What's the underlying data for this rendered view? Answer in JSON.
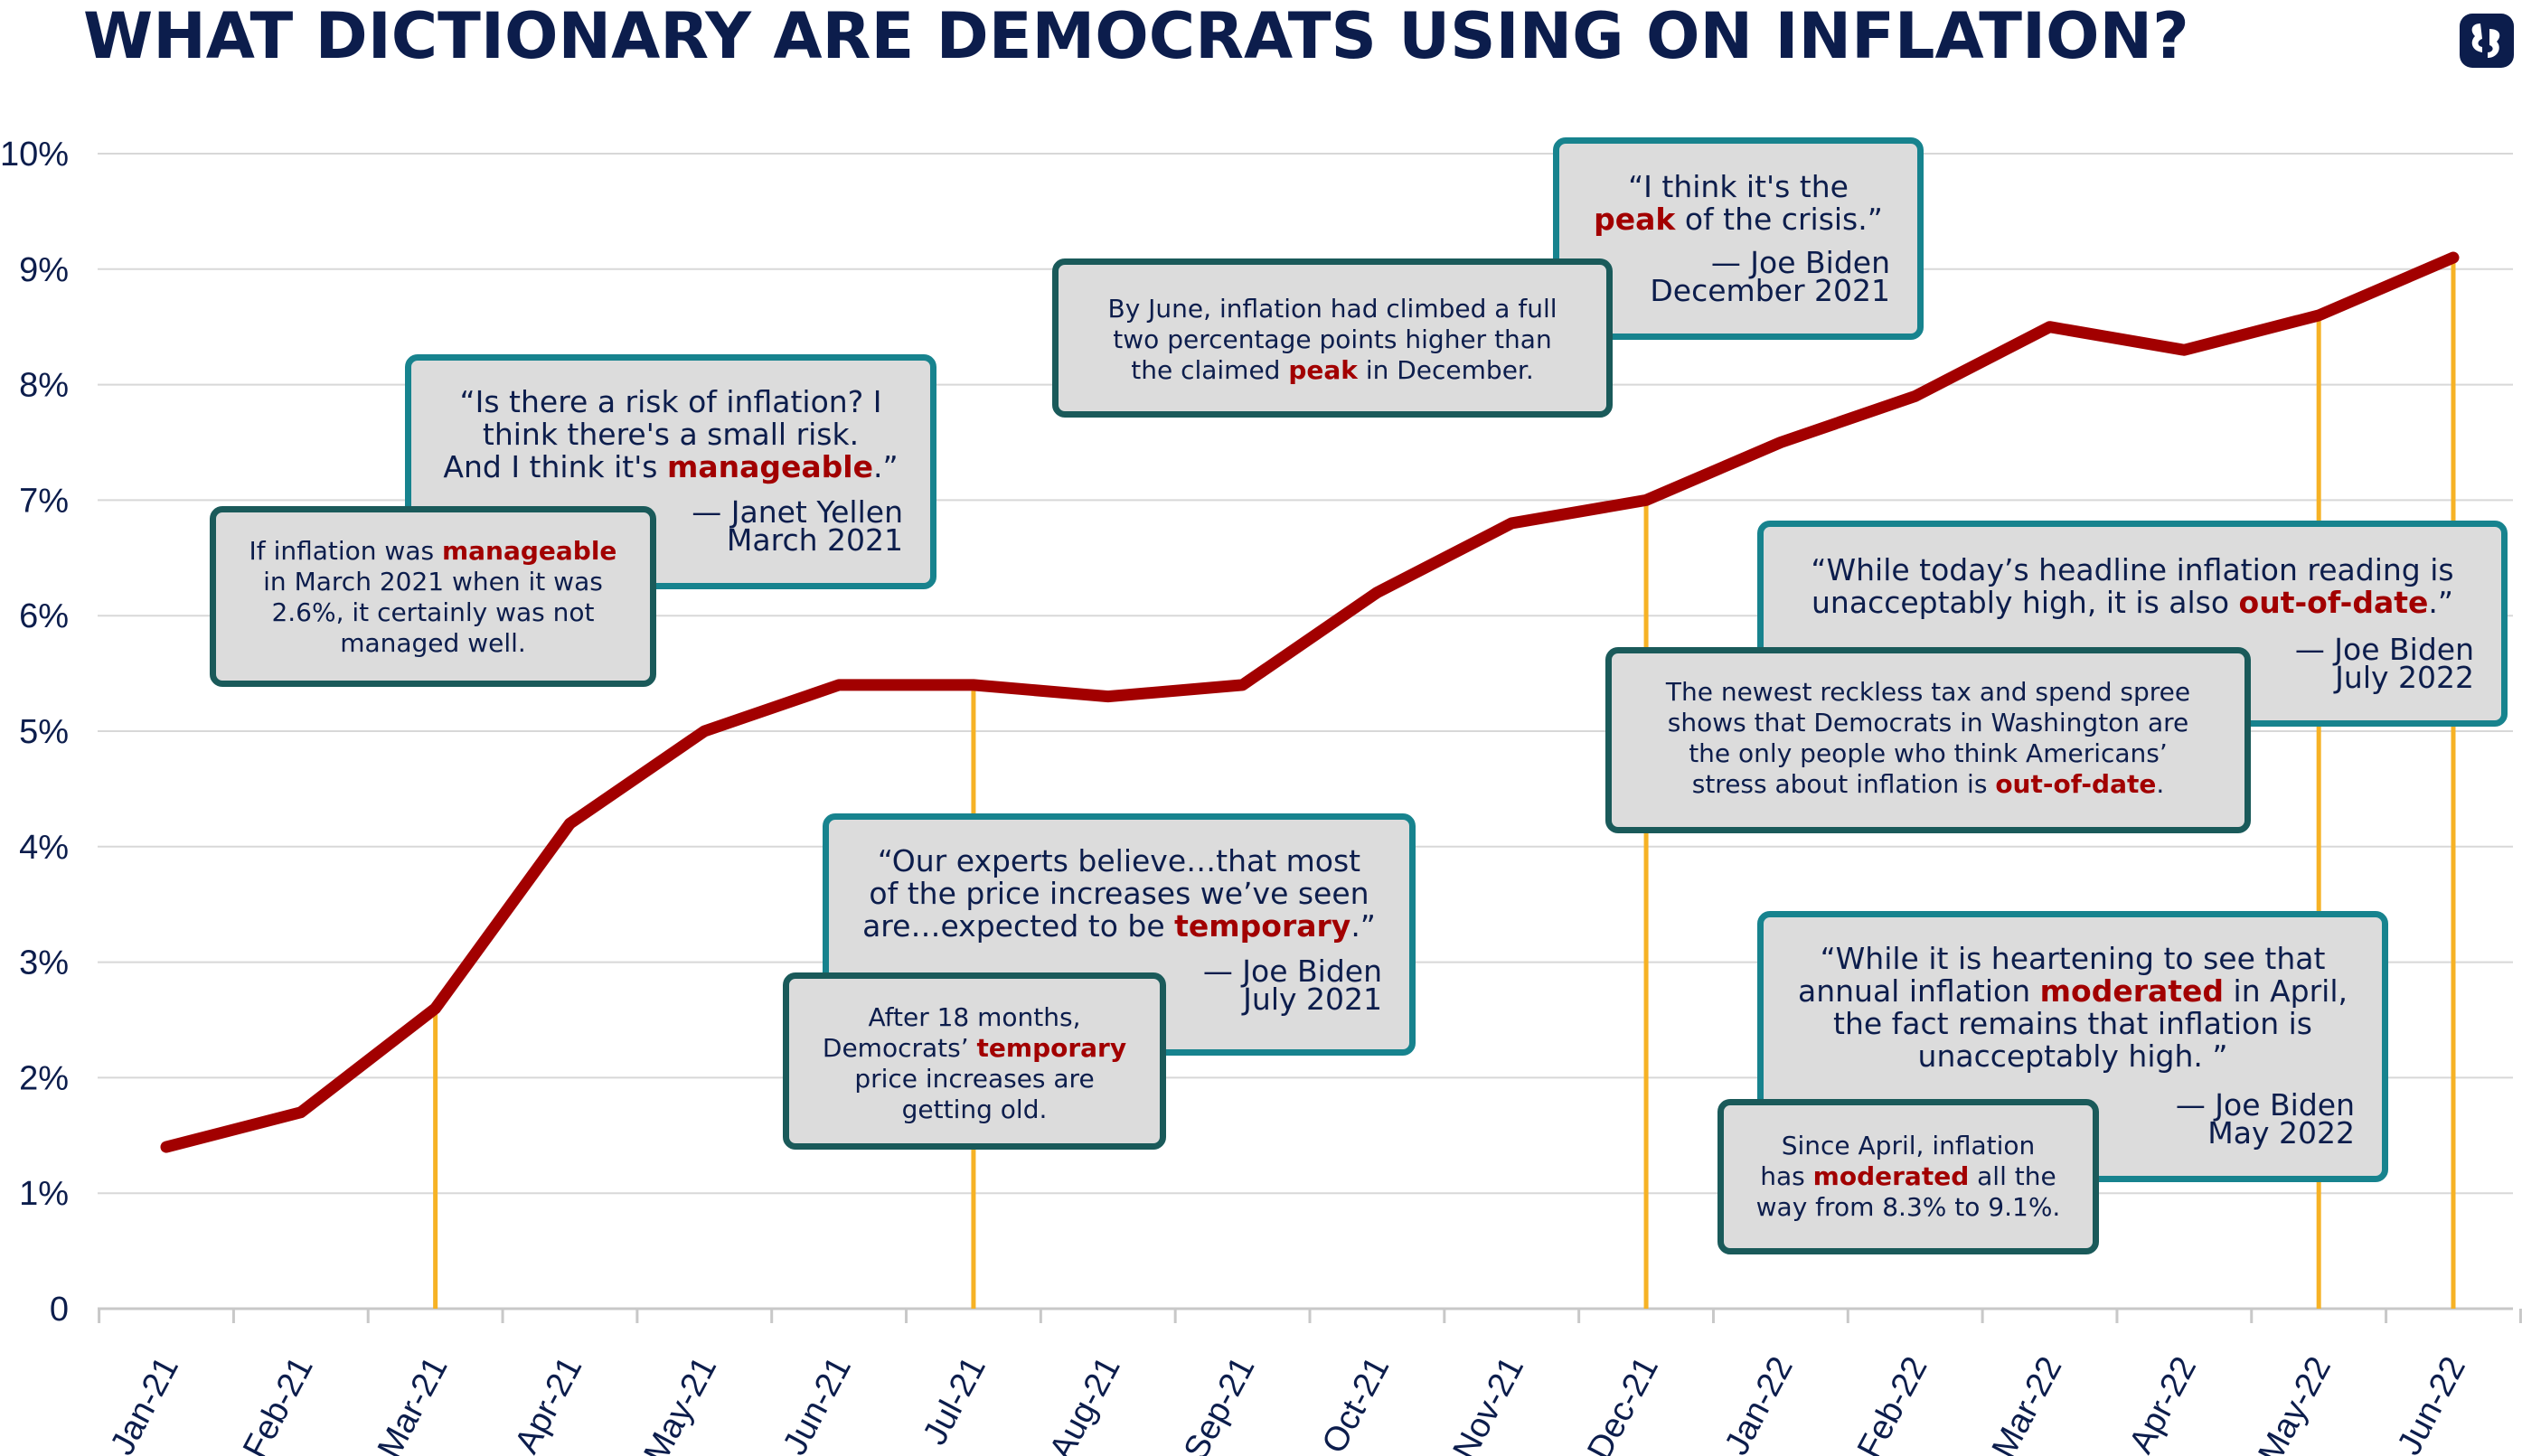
{
  "title": "WHAT DICTIONARY ARE DEMOCRATS USING ON INFLATION?",
  "logo_icon": "logo-mark-icon",
  "colors": {
    "line": "#a20000",
    "guide": "#f6b225",
    "navy": "#0c1d4c",
    "teal": "#17838e",
    "dark_teal": "#1a5a5a",
    "box": "#dcdcdc"
  },
  "chart_data": {
    "type": "line",
    "title": "WHAT DICTIONARY ARE DEMOCRATS USING ON INFLATION?",
    "xlabel": "",
    "ylabel": "",
    "categories": [
      "Jan-21",
      "Feb-21",
      "Mar-21",
      "Apr-21",
      "May-21",
      "Jun-21",
      "Jul-21",
      "Aug-21",
      "Sep-21",
      "Oct-21",
      "Nov-21",
      "Dec-21",
      "Jan-22",
      "Feb-22",
      "Mar-22",
      "Apr-22",
      "May-22",
      "Jun-22"
    ],
    "series": [
      {
        "name": "Inflation",
        "values": [
          1.4,
          1.7,
          2.6,
          4.2,
          5.0,
          5.4,
          5.4,
          5.3,
          5.4,
          6.2,
          6.8,
          7.0,
          7.5,
          7.9,
          8.5,
          8.3,
          8.6,
          9.1
        ]
      }
    ],
    "ylim": [
      0,
      10
    ],
    "y_ticks": [
      "0",
      "1%",
      "2%",
      "3%",
      "4%",
      "5%",
      "6%",
      "7%",
      "8%",
      "9%",
      "10%"
    ],
    "guide_lines_at": [
      "Mar-21",
      "Jul-21",
      "Dec-21",
      "May-22",
      "Jun-22"
    ],
    "grid": true
  },
  "callouts": {
    "yellen_quote": {
      "l1": "“Is there a risk of inflation? I",
      "l2": "think there's a small risk.",
      "l3a": "And I think it's ",
      "hl": "manageable",
      "l3b": ".”",
      "who": "— Janet Yellen",
      "when": "March 2021"
    },
    "yellen_note": {
      "t1": "If inflation was ",
      "hl": "manageable",
      "t2": "in March 2021 when it was",
      "t3": "2.6%, it certainly was not",
      "t4": "managed well."
    },
    "biden_peak_quote": {
      "l1": "“I think it's the",
      "hl": "peak",
      "l2b": " of the crisis.”",
      "who": "— Joe Biden",
      "when": "December 2021"
    },
    "peak_note": {
      "t1": "By June, inflation had climbed a full",
      "t2": "two percentage points higher than",
      "t3a": "the claimed ",
      "hl": "peak",
      "t3b": " in December."
    },
    "temporary_quote": {
      "l1": "“Our experts believe…that most",
      "l2": "of the price increases we’ve seen",
      "l3a": "are…expected to be ",
      "hl": "temporary",
      "l3b": ".”",
      "who": "— Joe Biden",
      "when": "July 2021"
    },
    "temporary_note": {
      "t1": "After 18 months,",
      "t2a": "Democrats’ ",
      "hl": "temporary",
      "t3": "price increases are",
      "t4": "getting old."
    },
    "outofdate_quote": {
      "l1": "“While today’s headline inflation reading is",
      "l2a": "unacceptably high, it is also ",
      "hl": "out-of-date",
      "l2b": ".”",
      "who": "— Joe Biden",
      "when": "July 2022"
    },
    "outofdate_note": {
      "t1": "The newest reckless tax and spend spree",
      "t2": "shows that Democrats in Washington are",
      "t3": "the only people who think Americans’",
      "t4a": "stress about inflation is ",
      "hl": "out-of-date",
      "t4b": "."
    },
    "moderated_quote": {
      "l1": "“While it is heartening to see that",
      "l2a": "annual inflation ",
      "hl": "moderated",
      "l2b": " in April,",
      "l3": "the fact remains that inflation is",
      "l4": "unacceptably high. ”",
      "who": "— Joe Biden",
      "when": "May 2022"
    },
    "moderated_note": {
      "t1": "Since April, inflation",
      "t2a": "has ",
      "hl": "moderated",
      "t2b": " all the",
      "t3": "way from 8.3% to 9.1%."
    }
  }
}
